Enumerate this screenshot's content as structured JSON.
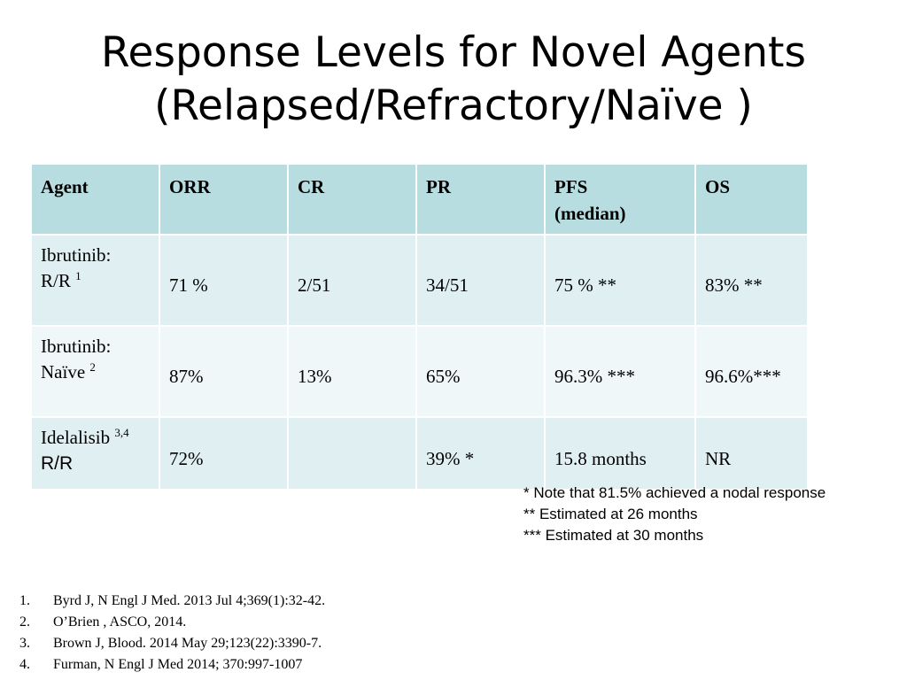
{
  "title": {
    "line1": "Response Levels for Novel Agents",
    "line2": "(Relapsed/Refractory/Naïve )"
  },
  "table": {
    "headers": [
      "Agent",
      "ORR",
      "CR",
      "PR",
      "PFS",
      "OS"
    ],
    "pfs_sub": "(median)",
    "rows": [
      {
        "agent_line1": "Ibrutinib:",
        "agent_line2": "R/R ",
        "agent_sup": "1",
        "orr": "71 %",
        "cr": "2/51",
        "pr": "34/51",
        "pfs": "75 % **",
        "os": "83% **"
      },
      {
        "agent_line1": "Ibrutinib:",
        "agent_line2": "Naïve ",
        "agent_sup": "2",
        "orr": "87%",
        "cr": "13%",
        "pr": "65%",
        "pfs": "96.3% ***",
        "os": "96.6%***"
      },
      {
        "agent_line1": "Idelalisib ",
        "agent_sup": "3,4",
        "agent_line2": "R/R",
        "orr": "72%",
        "cr": "",
        "pr": "39% *",
        "pfs": "15.8 months",
        "os": "NR"
      }
    ]
  },
  "notes": [
    "*   Note that 81.5% achieved a nodal response",
    "**  Estimated at 26 months",
    "*** Estimated at 30 months"
  ],
  "references": [
    {
      "num": "1.",
      "text": "Byrd J, N Engl J Med. 2013 Jul 4;369(1):32-42."
    },
    {
      "num": "2.",
      "text": "O’Brien , ASCO, 2014."
    },
    {
      "num": "3.",
      "text": "Brown J, Blood. 2014 May 29;123(22):3390-7."
    },
    {
      "num": "4.",
      "text": "Furman, N Engl J Med 2014; 370:997-1007"
    }
  ]
}
